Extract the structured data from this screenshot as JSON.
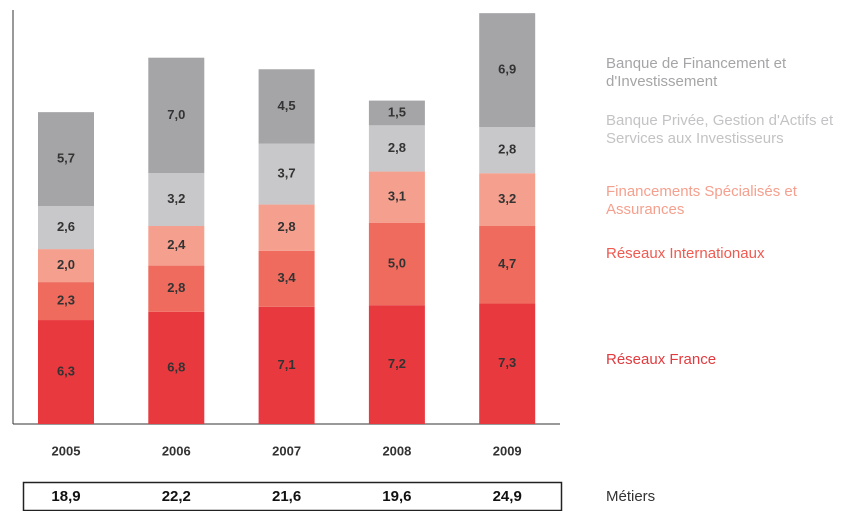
{
  "chart_data": {
    "type": "stacked_bar",
    "categories": [
      "2005",
      "2006",
      "2007",
      "2008",
      "2009"
    ],
    "ylim": [
      0,
      25
    ],
    "series": [
      {
        "name": "Réseaux France",
        "color": "#e8393f",
        "values": [
          6.3,
          6.8,
          7.1,
          7.2,
          7.3
        ],
        "value_labels": [
          "6,3",
          "6,8",
          "7,1",
          "7,2",
          "7,3"
        ]
      },
      {
        "name": "Réseaux Internationaux",
        "color": "#ef6b5e",
        "values": [
          2.3,
          2.8,
          3.4,
          5.0,
          4.7
        ],
        "value_labels": [
          "2,3",
          "2,8",
          "3,4",
          "5,0",
          "4,7"
        ]
      },
      {
        "name": "Financements Spécialisés et Assurances",
        "color": "#f5a08e",
        "values": [
          2.0,
          2.4,
          2.8,
          3.1,
          3.2
        ],
        "value_labels": [
          "2,0",
          "2,4",
          "2,8",
          "3,1",
          "3,2"
        ]
      },
      {
        "name": "Banque Privée, Gestion d'Actifs et Services aux Investisseurs",
        "color": "#c8c8ca",
        "values": [
          2.6,
          3.2,
          3.7,
          2.8,
          2.8
        ],
        "value_labels": [
          "2,6",
          "3,2",
          "3,7",
          "2,8",
          "2,8"
        ]
      },
      {
        "name": "Banque de Financement et d'Investissement",
        "color": "#a5a5a7",
        "values": [
          5.7,
          7.0,
          4.5,
          1.5,
          6.9
        ],
        "value_labels": [
          "5,7",
          "7,0",
          "4,5",
          "1,5",
          "6,9"
        ]
      }
    ],
    "totals": {
      "name": "Métiers",
      "values": [
        18.9,
        22.2,
        21.6,
        19.6,
        24.9
      ],
      "value_labels": [
        "18,9",
        "22,2",
        "21,6",
        "19,6",
        "24,9"
      ]
    }
  }
}
